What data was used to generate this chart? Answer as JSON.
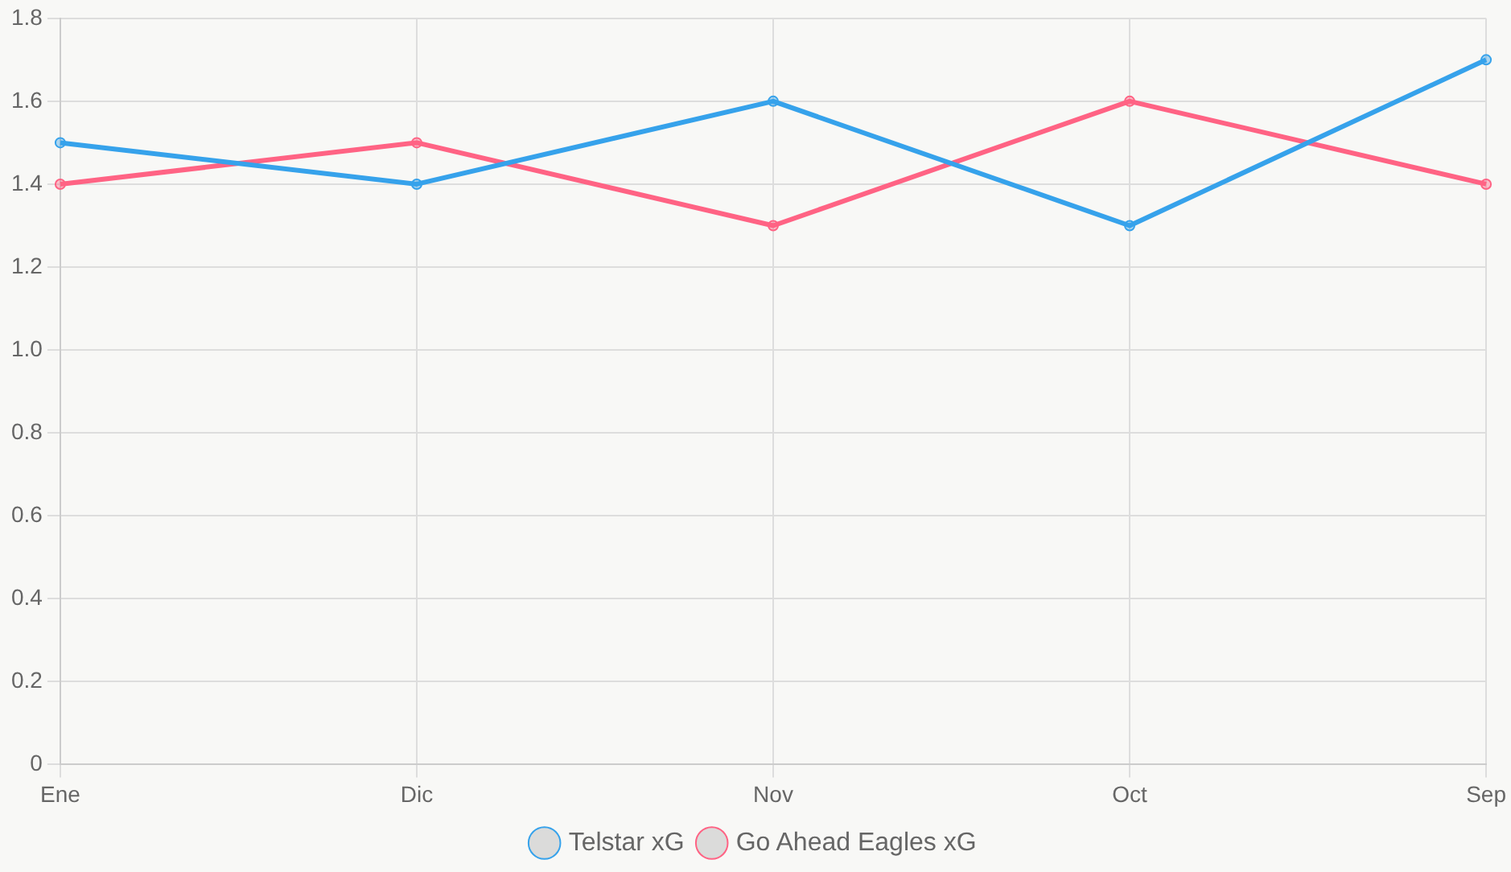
{
  "chart_data": {
    "type": "line",
    "categories": [
      "Ene",
      "Dic",
      "Nov",
      "Oct",
      "Sep"
    ],
    "series": [
      {
        "name": "Telstar xG",
        "color": "#36a2eb",
        "values": [
          1.5,
          1.4,
          1.6,
          1.3,
          1.7
        ]
      },
      {
        "name": "Go Ahead Eagles xG",
        "color": "#ff6384",
        "values": [
          1.4,
          1.5,
          1.3,
          1.6,
          1.4
        ]
      }
    ],
    "ylim": [
      0,
      1.8
    ],
    "yticks": [
      0,
      0.2,
      0.4,
      0.6,
      0.8,
      {
        "value": 1,
        "label": "1.0"
      },
      1.2,
      1.4,
      1.6,
      1.8
    ],
    "grid": true,
    "legend": "bottom",
    "marker": "circle",
    "line_style": "solid"
  }
}
